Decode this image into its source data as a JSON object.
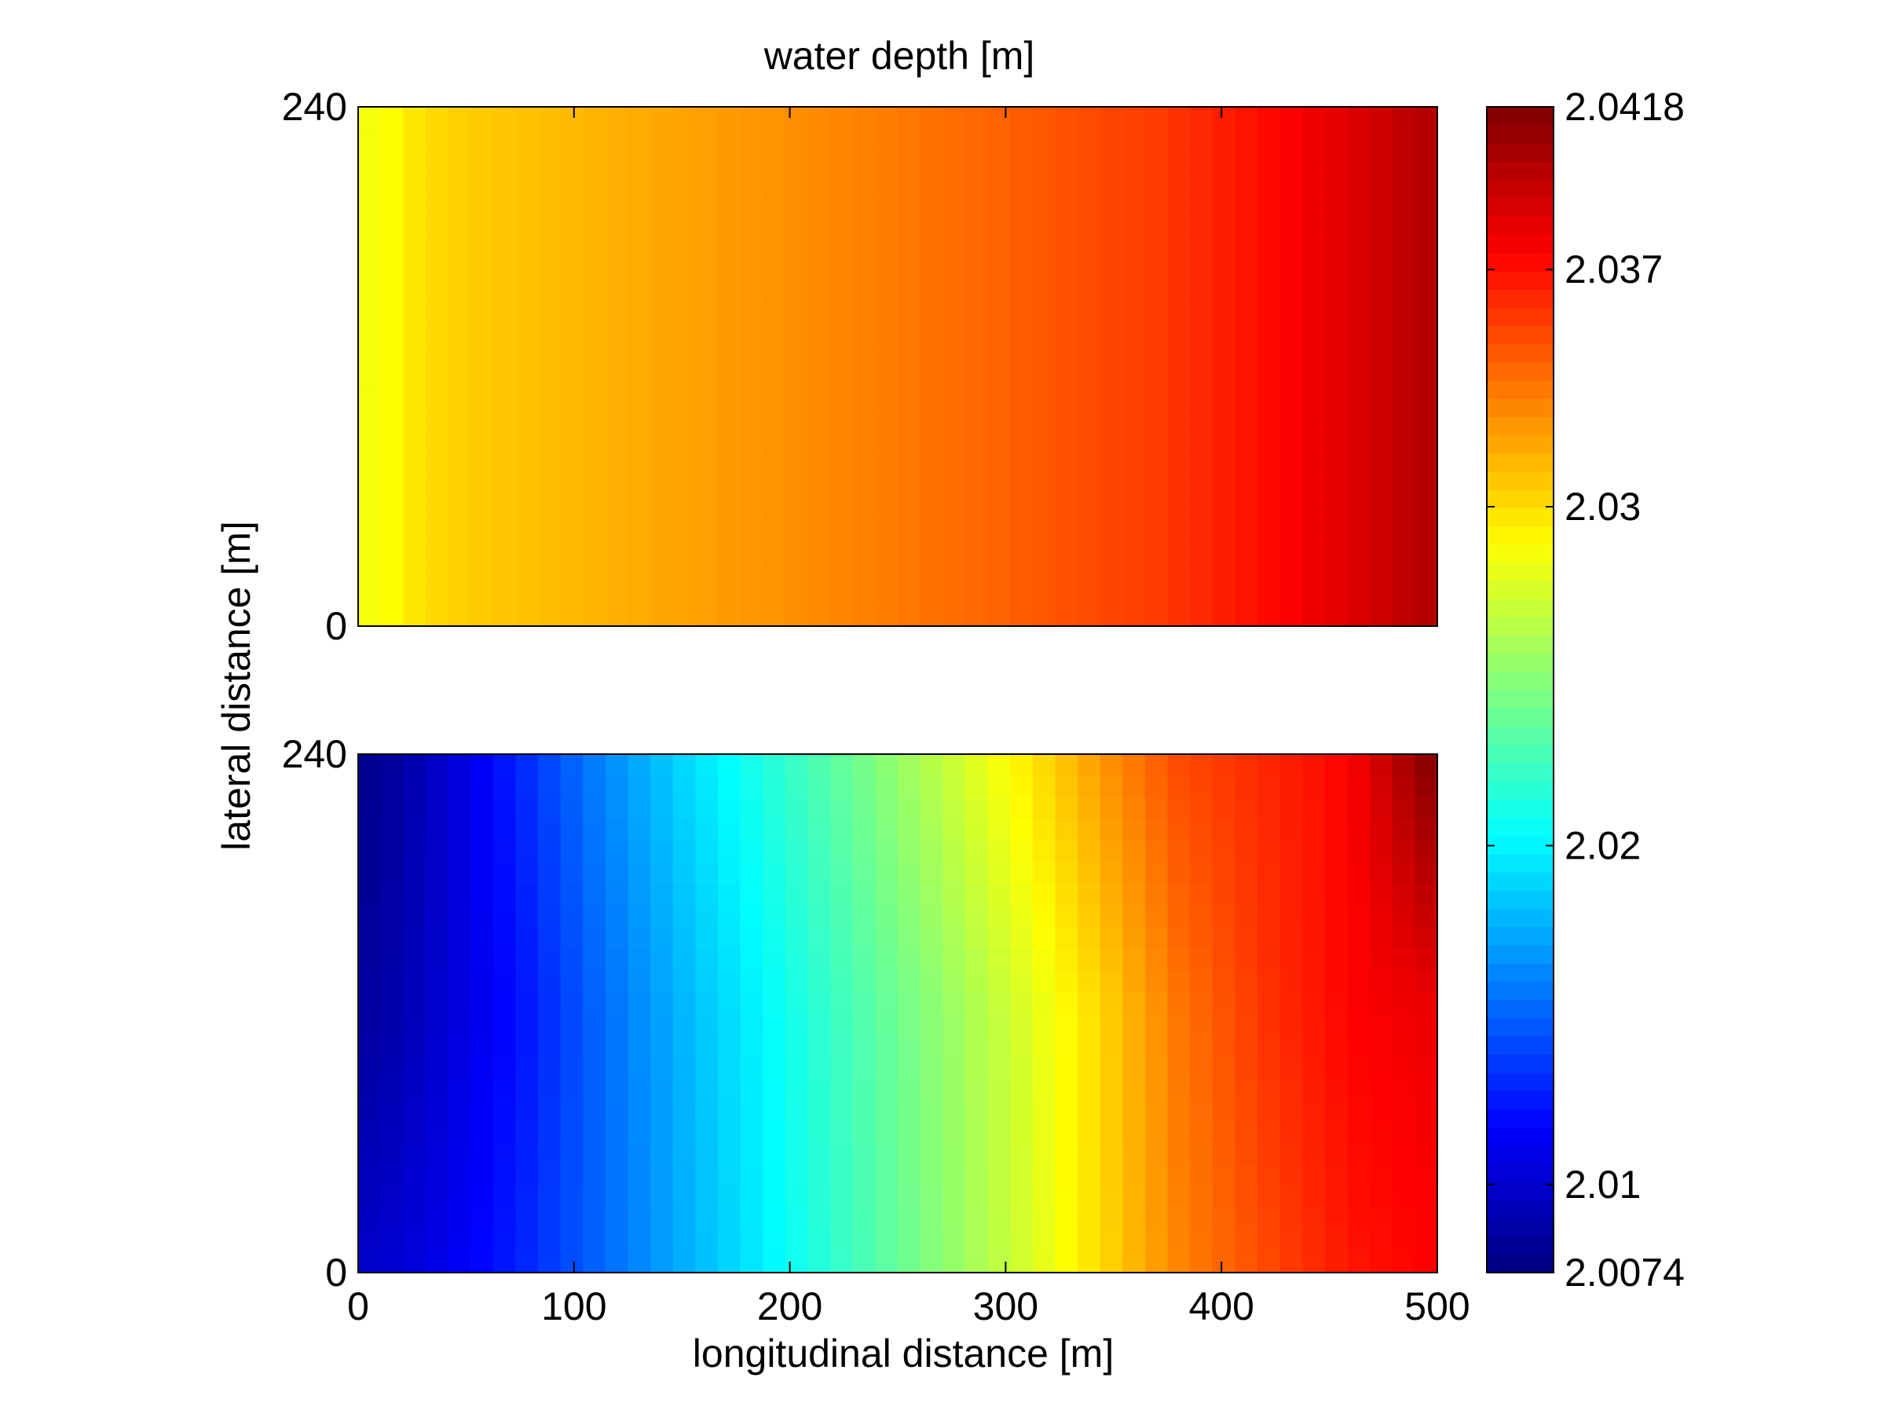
{
  "chart_data": {
    "type": "heatmap",
    "title": "water depth [m]",
    "xlabel": "longitudinal distance [m]",
    "ylabel": "lateral distance [m]",
    "xlim": [
      0,
      500
    ],
    "x_ticks": [
      0,
      100,
      200,
      300,
      400,
      500
    ],
    "colorbar": {
      "colormap": "jet",
      "range": [
        2.0074,
        2.0418
      ],
      "tick_labels": [
        "2.0074",
        "2.01",
        "2.02",
        "2.03",
        "2.037",
        "2.0418"
      ],
      "tick_values": [
        2.0074,
        2.01,
        2.02,
        2.03,
        2.037,
        2.0418
      ]
    },
    "panels": [
      {
        "name": "top",
        "ylim": [
          0,
          240
        ],
        "y_ticks": [
          0,
          240
        ],
        "x": [
          10,
          30,
          55,
          95,
          135,
          175,
          210,
          245,
          285,
          325,
          370,
          410,
          450,
          495
        ],
        "y": [
          240,
          0
        ],
        "z": [
          [
            2.0285,
            2.03,
            2.0307,
            2.0312,
            2.0318,
            2.0323,
            2.0328,
            2.0333,
            2.034,
            2.0347,
            2.0355,
            2.0368,
            2.0382,
            2.04
          ],
          [
            2.0285,
            2.03,
            2.0307,
            2.0312,
            2.0318,
            2.0323,
            2.0328,
            2.0333,
            2.034,
            2.0347,
            2.0355,
            2.0368,
            2.0382,
            2.04
          ]
        ]
      },
      {
        "name": "bottom",
        "ylim": [
          0,
          240
        ],
        "y_ticks": [
          0,
          240
        ],
        "x": [
          10,
          40,
          75,
          110,
          150,
          190,
          230,
          270,
          310,
          345,
          380,
          420,
          460,
          495
        ],
        "y": [
          240,
          120,
          0
        ],
        "z": [
          [
            2.008,
            2.01,
            2.013,
            2.016,
            2.019,
            2.0215,
            2.024,
            2.0268,
            2.0296,
            2.0325,
            2.035,
            2.0362,
            2.0375,
            2.0415
          ],
          [
            2.0085,
            2.0102,
            2.0122,
            2.015,
            2.0178,
            2.0203,
            2.0228,
            2.0252,
            2.0277,
            2.0303,
            2.0335,
            2.0358,
            2.0375,
            2.038
          ],
          [
            2.01,
            2.011,
            2.0128,
            2.015,
            2.0175,
            2.02,
            2.0225,
            2.025,
            2.0275,
            2.0302,
            2.033,
            2.035,
            2.0368,
            2.0375
          ]
        ]
      }
    ]
  }
}
